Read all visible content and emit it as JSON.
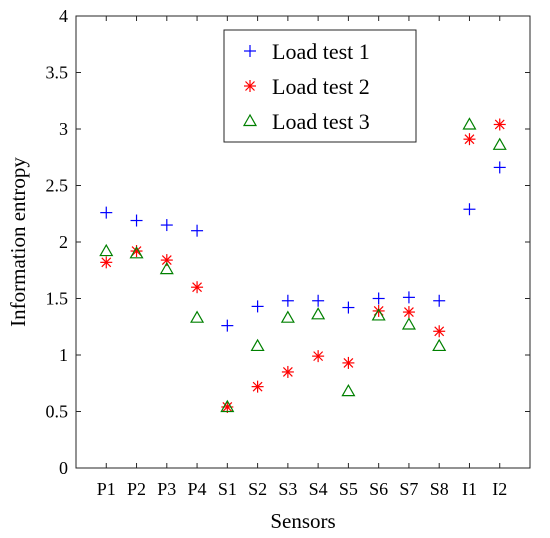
{
  "chart_data": {
    "type": "scatter",
    "title": "",
    "xlabel": "Sensors",
    "ylabel": "Information entropy",
    "categories": [
      "P1",
      "P2",
      "P3",
      "P4",
      "S1",
      "S2",
      "S3",
      "S4",
      "S5",
      "S6",
      "S7",
      "S8",
      "I1",
      "I2"
    ],
    "yticks": [
      "0",
      "0.5",
      "1",
      "1.5",
      "2",
      "2.5",
      "3",
      "3.5",
      "4"
    ],
    "ylim": [
      0,
      4
    ],
    "grid": false,
    "legend_position": "top-center",
    "series": [
      {
        "name": "Load test 1",
        "marker": "plus",
        "color": "#0000ff",
        "values": [
          2.26,
          2.19,
          2.15,
          2.1,
          1.26,
          1.43,
          1.48,
          1.48,
          1.42,
          1.5,
          1.51,
          1.48,
          2.29,
          2.66
        ]
      },
      {
        "name": "Load test 2",
        "marker": "asterisk",
        "color": "#ff0000",
        "values": [
          1.82,
          1.92,
          1.84,
          1.6,
          0.54,
          0.72,
          0.85,
          0.99,
          0.93,
          1.39,
          1.38,
          1.21,
          2.91,
          3.04
        ]
      },
      {
        "name": "Load test 3",
        "marker": "triangle",
        "color": "#008000",
        "values": [
          1.92,
          1.9,
          1.76,
          1.33,
          0.54,
          1.08,
          1.33,
          1.36,
          0.68,
          1.35,
          1.27,
          1.08,
          3.04,
          2.86
        ]
      }
    ]
  }
}
